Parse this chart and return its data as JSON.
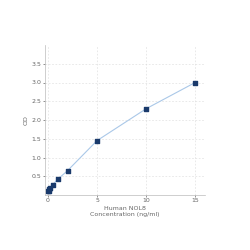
{
  "x": [
    0,
    0.0625,
    0.125,
    0.25,
    0.5,
    1,
    2,
    5,
    10,
    15
  ],
  "y": [
    0.1,
    0.12,
    0.15,
    0.2,
    0.28,
    0.42,
    0.65,
    1.45,
    2.3,
    3.0
  ],
  "line_color": "#aac8e8",
  "marker_color": "#1a3a6b",
  "marker_size": 3,
  "xlabel_line1": "Human NOL8",
  "xlabel_line2": "Concentration (ng/ml)",
  "ylabel": "OD",
  "xlim": [
    -0.3,
    16
  ],
  "ylim": [
    0,
    4.0
  ],
  "yticks": [
    0.5,
    1.0,
    1.5,
    2.0,
    2.5,
    3.0,
    3.5
  ],
  "xticks": [
    0,
    5,
    10,
    15
  ],
  "grid_color": "#d8d8d8",
  "background_color": "#ffffff",
  "label_fontsize": 4.5,
  "tick_fontsize": 4.5
}
